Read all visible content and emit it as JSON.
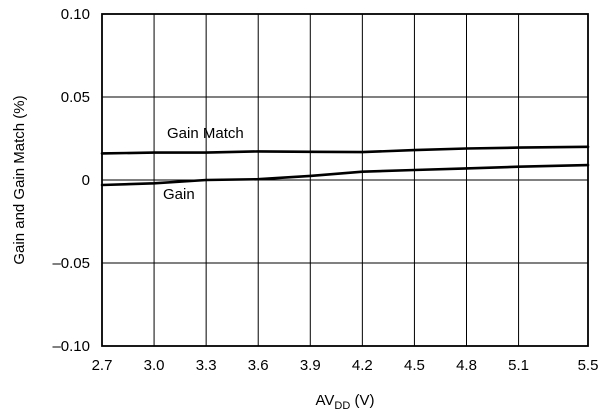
{
  "chart_data": {
    "type": "line",
    "title": "",
    "xlabel": {
      "main": "AV",
      "subscript": "DD",
      "unit": " (V)"
    },
    "ylabel": "Gain and Gain Match (%)",
    "xlim": [
      2.7,
      5.5
    ],
    "ylim": [
      -0.1,
      0.1
    ],
    "x_ticks": [
      2.7,
      3.0,
      3.3,
      3.6,
      3.9,
      4.2,
      4.5,
      4.8,
      5.1,
      5.5
    ],
    "x_tick_labels": [
      "2.7",
      "3.0",
      "3.3",
      "3.6",
      "3.9",
      "4.2",
      "4.5",
      "4.8",
      "5.1",
      "5.5"
    ],
    "y_ticks": [
      0.1,
      0.05,
      0,
      -0.05,
      -0.1
    ],
    "y_tick_labels": [
      "0.10",
      "0.05",
      "0",
      "–0.05",
      "–0.10"
    ],
    "grid": true,
    "series": [
      {
        "name": "Gain Match",
        "x": [
          2.7,
          3.0,
          3.3,
          3.6,
          3.9,
          4.2,
          4.5,
          4.8,
          5.1,
          5.5
        ],
        "values": [
          0.016,
          0.0165,
          0.0165,
          0.0172,
          0.017,
          0.0168,
          0.018,
          0.019,
          0.0195,
          0.02
        ]
      },
      {
        "name": "Gain",
        "x": [
          2.7,
          3.0,
          3.3,
          3.6,
          3.9,
          4.2,
          4.5,
          4.8,
          5.1,
          5.5
        ],
        "values": [
          -0.003,
          -0.002,
          0.0,
          0.0005,
          0.0025,
          0.005,
          0.006,
          0.007,
          0.008,
          0.009
        ]
      }
    ]
  }
}
